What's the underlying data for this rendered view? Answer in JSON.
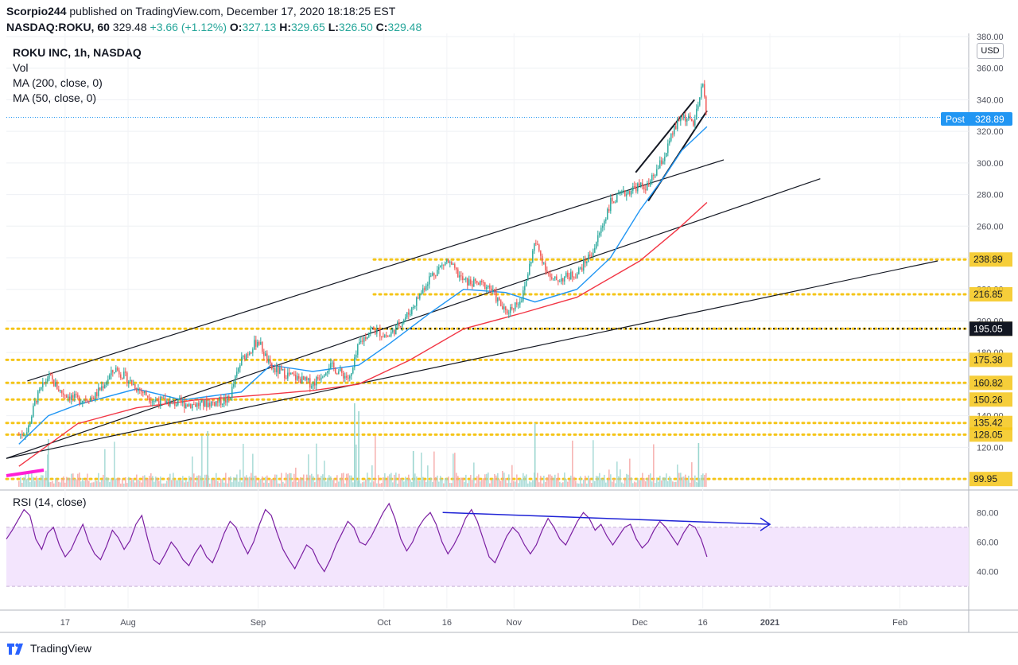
{
  "header": {
    "line1_user": "Scorpio244",
    "line1_rest": " published on TradingView.com, December 17, 2020 18:18:25 EST",
    "symbol": "NASDAQ:ROKU, 60",
    "last": "329.48",
    "change": "+3.66 (+1.12%)",
    "o_label": "O:",
    "o_val": "327.13",
    "h_label": "H:",
    "h_val": "329.65",
    "l_label": "L:",
    "l_val": "326.50",
    "c_label": "C:",
    "c_val": "329.48"
  },
  "legend": {
    "title": "ROKU INC, 1h, NASDAQ",
    "vol": "Vol",
    "ma200": "MA (200, close, 0)",
    "ma50": "MA (50, close, 0)",
    "rsi": "RSI (14, close)"
  },
  "currency": "USD",
  "post_tag": {
    "label": "Post",
    "value": "328.89"
  },
  "brand": "TradingView",
  "colors": {
    "up": "#26a69a",
    "down": "#ef5350",
    "ma50": "#2196f3",
    "ma200": "#f23645",
    "rsi": "#7b1fa2",
    "rsi_band": "#f3e5fd",
    "level": "#f5c518",
    "post": "#2196f3",
    "trend_blue": "#1e22d6",
    "magenta": "#ff1fd6"
  },
  "chart_data": [
    {
      "type": "candlestick",
      "title": "ROKU INC, 1h, NASDAQ",
      "x_ticks": [
        "17",
        "Aug",
        "Sep",
        "Oct",
        "16",
        "Nov",
        "Dec",
        "16",
        "2021",
        "Feb"
      ],
      "y_ticks": [
        120,
        140,
        160,
        180,
        200,
        220,
        240,
        260,
        280,
        300,
        320,
        340,
        360,
        380
      ],
      "ylim": [
        95,
        382
      ],
      "price_path": [
        [
          "2020-07-06",
          128
        ],
        [
          "2020-07-08",
          130
        ],
        [
          "2020-07-10",
          150
        ],
        [
          "2020-07-13",
          165
        ],
        [
          "2020-07-16",
          155
        ],
        [
          "2020-07-20",
          150
        ],
        [
          "2020-07-24",
          152
        ],
        [
          "2020-07-29",
          170
        ],
        [
          "2020-08-03",
          158
        ],
        [
          "2020-08-07",
          150
        ],
        [
          "2020-08-12",
          148
        ],
        [
          "2020-08-18",
          147
        ],
        [
          "2020-08-25",
          150
        ],
        [
          "2020-08-28",
          175
        ],
        [
          "2020-09-01",
          188
        ],
        [
          "2020-09-04",
          170
        ],
        [
          "2020-09-09",
          165
        ],
        [
          "2020-09-14",
          160
        ],
        [
          "2020-09-18",
          172
        ],
        [
          "2020-09-23",
          163
        ],
        [
          "2020-09-25",
          185
        ],
        [
          "2020-09-28",
          195
        ],
        [
          "2020-10-02",
          190
        ],
        [
          "2020-10-07",
          205
        ],
        [
          "2020-10-12",
          228
        ],
        [
          "2020-10-16",
          238
        ],
        [
          "2020-10-20",
          225
        ],
        [
          "2020-10-26",
          222
        ],
        [
          "2020-10-30",
          205
        ],
        [
          "2020-11-03",
          215
        ],
        [
          "2020-11-06",
          250
        ],
        [
          "2020-11-10",
          225
        ],
        [
          "2020-11-16",
          230
        ],
        [
          "2020-11-20",
          245
        ],
        [
          "2020-11-24",
          275
        ],
        [
          "2020-11-30",
          285
        ],
        [
          "2020-12-03",
          285
        ],
        [
          "2020-12-07",
          305
        ],
        [
          "2020-12-09",
          320
        ],
        [
          "2020-12-11",
          330
        ],
        [
          "2020-12-14",
          325
        ],
        [
          "2020-12-16",
          350
        ],
        [
          "2020-12-17",
          328.89
        ]
      ],
      "series": [
        {
          "name": "MA (50, close, 0)",
          "points": [
            [
              "2020-07-06",
              122
            ],
            [
              "2020-07-13",
              140
            ],
            [
              "2020-07-20",
              147
            ],
            [
              "2020-08-03",
              157
            ],
            [
              "2020-08-14",
              150
            ],
            [
              "2020-08-28",
              155
            ],
            [
              "2020-09-04",
              172
            ],
            [
              "2020-09-14",
              168
            ],
            [
              "2020-09-25",
              172
            ],
            [
              "2020-10-02",
              185
            ],
            [
              "2020-10-12",
              205
            ],
            [
              "2020-10-20",
              220
            ],
            [
              "2020-10-30",
              218
            ],
            [
              "2020-11-06",
              212
            ],
            [
              "2020-11-16",
              220
            ],
            [
              "2020-11-24",
              240
            ],
            [
              "2020-12-01",
              270
            ],
            [
              "2020-12-07",
              292
            ],
            [
              "2020-12-11",
              308
            ],
            [
              "2020-12-17",
              323
            ]
          ]
        },
        {
          "name": "MA (200, close, 0)",
          "points": [
            [
              "2020-07-06",
              108
            ],
            [
              "2020-07-20",
              135
            ],
            [
              "2020-08-03",
              145
            ],
            [
              "2020-08-17",
              150
            ],
            [
              "2020-09-01",
              153
            ],
            [
              "2020-09-14",
              156
            ],
            [
              "2020-09-25",
              160
            ],
            [
              "2020-10-07",
              175
            ],
            [
              "2020-10-20",
              195
            ],
            [
              "2020-11-03",
              205
            ],
            [
              "2020-11-16",
              215
            ],
            [
              "2020-12-01",
              238
            ],
            [
              "2020-12-10",
              258
            ],
            [
              "2020-12-17",
              275
            ]
          ]
        }
      ],
      "trendlines": [
        [
          [
            "2020-07-08",
            162
          ],
          [
            "2020-12-21",
            302
          ]
        ],
        [
          [
            "2020-07-03",
            113
          ],
          [
            "2021-01-13",
            290
          ]
        ],
        [
          [
            "2020-07-03",
            113
          ],
          [
            "2021-02-10",
            238
          ]
        ],
        [
          [
            "2020-11-30",
            294
          ],
          [
            "2020-12-14",
            340
          ]
        ],
        [
          [
            "2020-12-03",
            276
          ],
          [
            "2020-12-17",
            333
          ]
        ]
      ],
      "price_levels": [
        238.89,
        216.85,
        195.05,
        175.38,
        160.82,
        150.26,
        135.42,
        128.05,
        99.95
      ],
      "highlighted_level": 195.05,
      "last_price": 328.89
    },
    {
      "type": "line",
      "title": "RSI (14, close)",
      "y_ticks": [
        40,
        60,
        80
      ],
      "ylim": [
        15,
        92
      ],
      "band": [
        30,
        70
      ],
      "values": [
        62,
        68,
        75,
        82,
        78,
        62,
        55,
        66,
        70,
        58,
        50,
        55,
        64,
        72,
        60,
        52,
        48,
        57,
        68,
        63,
        55,
        61,
        72,
        78,
        62,
        48,
        45,
        52,
        60,
        55,
        48,
        44,
        52,
        58,
        50,
        46,
        55,
        66,
        74,
        70,
        60,
        52,
        60,
        72,
        82,
        78,
        66,
        55,
        48,
        42,
        50,
        58,
        55,
        46,
        40,
        48,
        58,
        66,
        74,
        70,
        60,
        58,
        64,
        72,
        80,
        86,
        76,
        62,
        54,
        60,
        70,
        76,
        80,
        72,
        60,
        52,
        58,
        66,
        76,
        82,
        74,
        62,
        50,
        46,
        55,
        64,
        70,
        66,
        58,
        52,
        58,
        68,
        76,
        70,
        62,
        58,
        66,
        74,
        80,
        76,
        68,
        72,
        64,
        58,
        64,
        70,
        72,
        62,
        56,
        60,
        68,
        74,
        70,
        64,
        58,
        66,
        72,
        70,
        62,
        50
      ],
      "trendline": [
        [
          "2020-10-15",
          80
        ],
        [
          "2021-01-01",
          72
        ]
      ]
    }
  ]
}
